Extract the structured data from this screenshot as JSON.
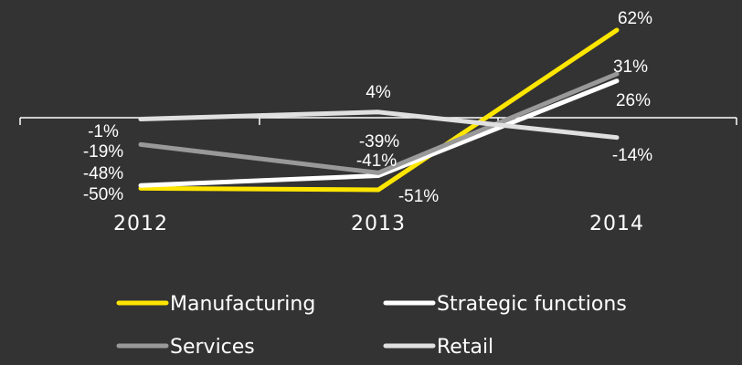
{
  "chart_data": {
    "type": "line",
    "title": "",
    "xlabel": "",
    "ylabel": "",
    "categories": [
      "2012",
      "2013",
      "2014"
    ],
    "ylim": [
      -65,
      80
    ],
    "grid": false,
    "legend_position": "bottom",
    "series": [
      {
        "name": "Manufacturing",
        "values": [
          -50,
          -51,
          62
        ],
        "labels": [
          "-50%",
          "-51%",
          "62%"
        ],
        "color": "#ffe600"
      },
      {
        "name": "Strategic functions",
        "values": [
          -48,
          -41,
          26
        ],
        "labels": [
          "-48%",
          "-41%",
          "26%"
        ],
        "color": "#ffffff"
      },
      {
        "name": "Services",
        "values": [
          -19,
          -39,
          31
        ],
        "labels": [
          "-19%",
          "-39%",
          "31%"
        ],
        "color": "#999999"
      },
      {
        "name": "Retail",
        "values": [
          -1,
          4,
          -14
        ],
        "labels": [
          "-1%",
          "4%",
          "-14%"
        ],
        "color": "#e0e0e0"
      }
    ]
  }
}
